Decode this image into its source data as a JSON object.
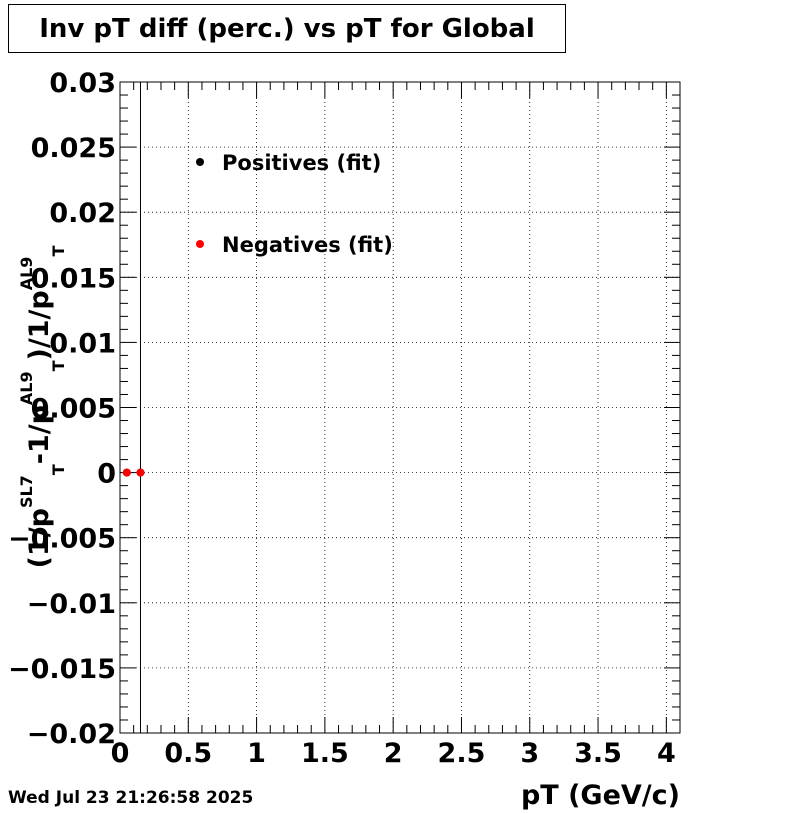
{
  "chart_data": {
    "type": "scatter",
    "title": "Inv pT diff (perc.) vs pT for Global",
    "xlabel": "pT (GeV/c)",
    "ylabel_parts": {
      "open": "(1/p",
      "sup1": "SL7",
      "sub1": "T",
      "mid": "-1/p",
      "sup2": "AL9",
      "sub2": "T",
      "close": ")/1/p",
      "sup3": "AL9",
      "sub3": "T"
    },
    "xlim": [
      0,
      4.1
    ],
    "ylim": [
      -0.02,
      0.03
    ],
    "x_ticks": [
      "0",
      "0.5",
      "1",
      "1.5",
      "2",
      "2.5",
      "3",
      "3.5",
      "4"
    ],
    "x_tick_values": [
      0,
      0.5,
      1,
      1.5,
      2,
      2.5,
      3,
      3.5,
      4
    ],
    "y_ticks": [
      "0.03",
      "0.025",
      "0.02",
      "0.015",
      "0.01",
      "0.005",
      "0",
      "−0.005",
      "−0.01",
      "−0.015",
      "−0.02"
    ],
    "y_tick_values": [
      0.03,
      0.025,
      0.02,
      0.015,
      0.01,
      0.005,
      0,
      -0.005,
      -0.01,
      -0.015,
      -0.02
    ],
    "grid": true,
    "legend_position": "top-left",
    "series": [
      {
        "name": "Positives (fit)",
        "color": "#000000",
        "x": [
          0.05,
          0.15
        ],
        "y": [
          0,
          0
        ]
      },
      {
        "name": "Negatives (fit)",
        "color": "#ff0000",
        "x": [
          0.05,
          0.15
        ],
        "y": [
          0,
          0
        ]
      }
    ],
    "vertical_line_x": 0.15
  },
  "footer": {
    "date": "Wed Jul 23 21:26:58 2025"
  }
}
